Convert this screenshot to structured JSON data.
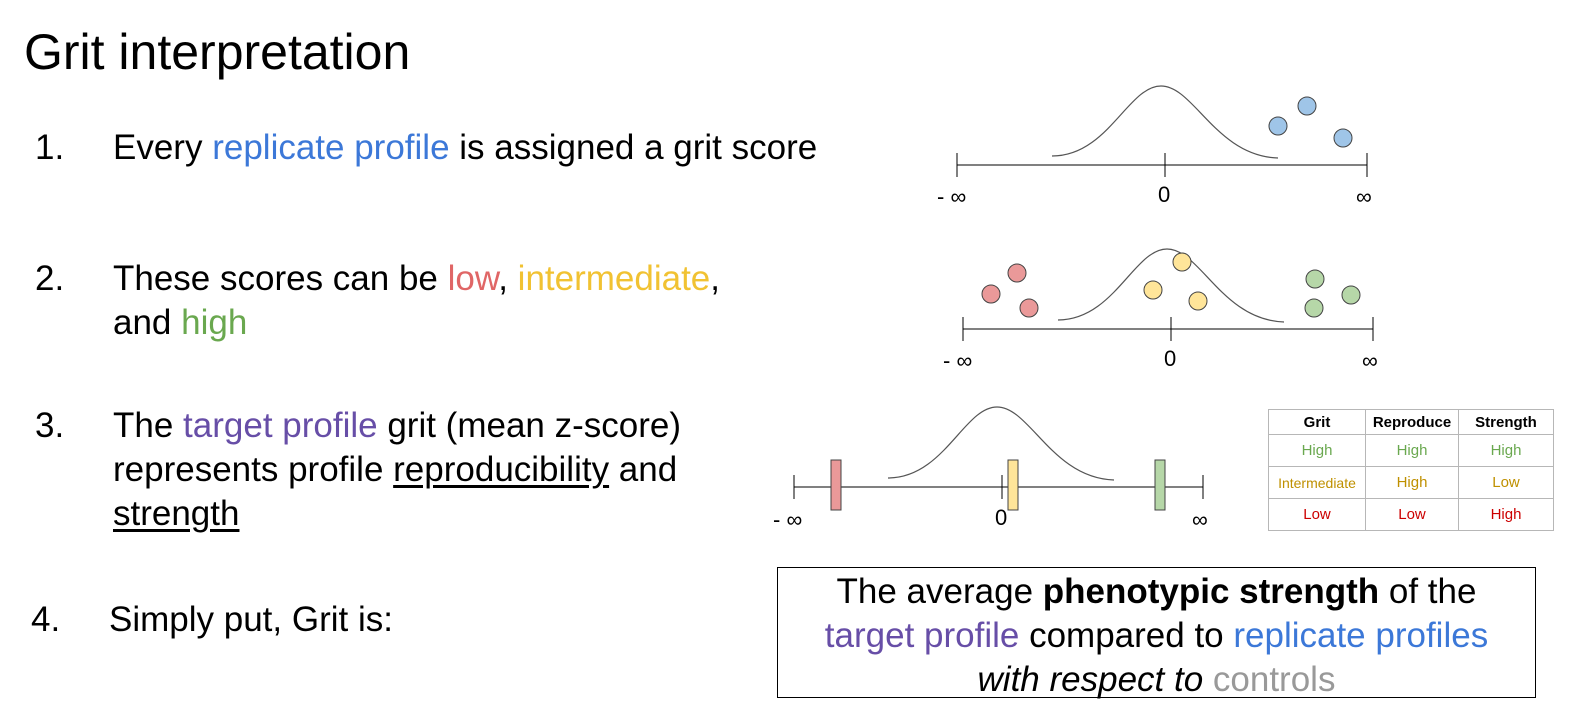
{
  "title": "Grit interpretation",
  "items": [
    {
      "num": "1.",
      "pre": "Every ",
      "hl": "replicate profile",
      "post": " is assigned a grit score"
    },
    {
      "num": "2.",
      "pre": "These scores can be ",
      "low": "low",
      "sep1": ", ",
      "mid": "intermediate",
      "sep2": ",",
      "line2_pre": "and ",
      "high": "high"
    },
    {
      "num": "3.",
      "pre": "The ",
      "hl": "target profile",
      "post": " grit (mean z-score)",
      "line2_pre": "represents profile ",
      "u1": "reproducibility",
      "line2_post": " and",
      "u2": "strength"
    },
    {
      "num": "4.",
      "text": "Simply put, Grit is:"
    }
  ],
  "axis_labels": {
    "neg_inf": "- ∞",
    "zero": "0",
    "pos_inf": "∞"
  },
  "table": {
    "headers": [
      "Grit",
      "Reproduce",
      "Strength"
    ],
    "rows": [
      [
        "High",
        "High",
        "High"
      ],
      [
        "Intermediate",
        "High",
        "Low"
      ],
      [
        "Low",
        "Low",
        "High"
      ]
    ]
  },
  "summary": {
    "l1_pre": "The average ",
    "l1_bold": "phenotypic strength",
    "l1_post": " of the",
    "l2_target": "target profile",
    "l2_mid": " compared to ",
    "l2_rep": "replicate profiles",
    "l3_italic": "with respect to",
    "l3_space": " ",
    "l3_controls": "controls"
  },
  "colors": {
    "blue": "#3c78d8",
    "red": "#e06666",
    "yellow": "#f1c232",
    "green": "#6aa84f",
    "purple": "#674ea7",
    "grey": "#999999"
  }
}
